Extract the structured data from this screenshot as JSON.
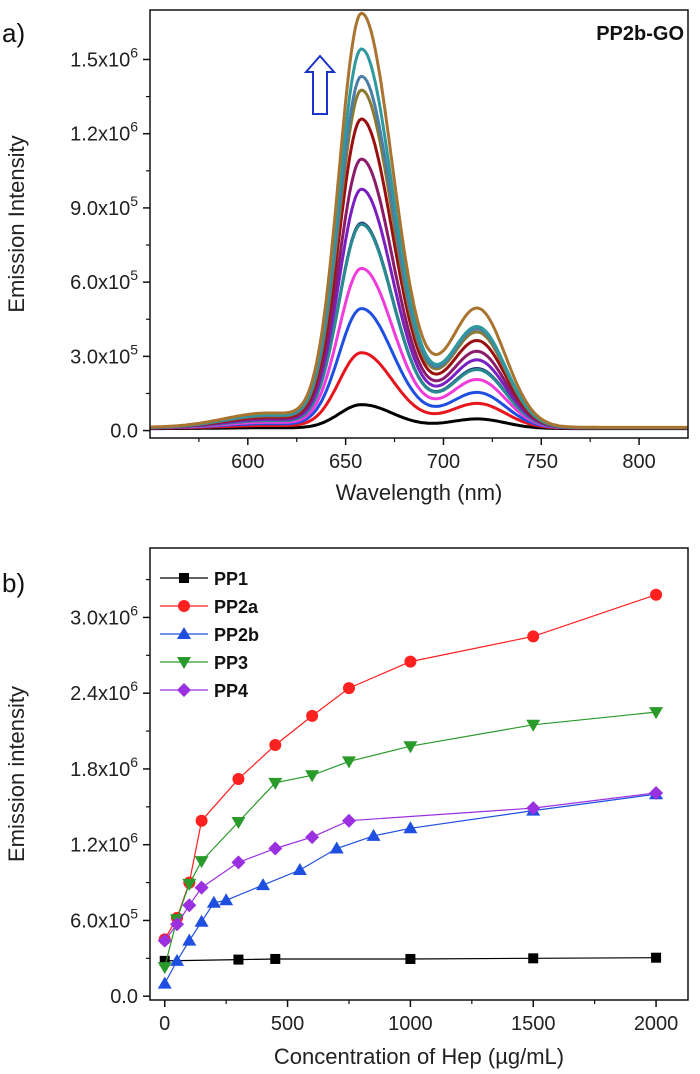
{
  "panel_a": {
    "panel_label": "a)",
    "corner_label": "PP2b-GO",
    "arrow_color": "#1c33c8",
    "chart_data": {
      "type": "line",
      "xlabel": "Wavelength (nm)",
      "ylabel": "Emission Intensity",
      "xlim": [
        550,
        825
      ],
      "ylim": [
        -30000,
        1700000
      ],
      "x_ticks": [
        600,
        650,
        700,
        750,
        800
      ],
      "y_ticks": [
        {
          "value": 0,
          "label": "0.0"
        },
        {
          "value": 300000,
          "mant": "3.0x10",
          "exp": "5"
        },
        {
          "value": 600000,
          "mant": "6.0x10",
          "exp": "5"
        },
        {
          "value": 900000,
          "mant": "9.0x10",
          "exp": "5"
        },
        {
          "value": 1200000,
          "mant": "1.2x10",
          "exp": "6"
        },
        {
          "value": 1500000,
          "mant": "1.5x10",
          "exp": "6"
        }
      ],
      "grid": false,
      "series": [
        {
          "color": "#000000",
          "peak1": 95000,
          "peak2": 45000,
          "base": 8000
        },
        {
          "color": "#e8141e",
          "peak1": 300000,
          "peak2": 115000,
          "base": 10000
        },
        {
          "color": "#1f4fe0",
          "peak1": 475000,
          "peak2": 165000,
          "base": 11000
        },
        {
          "color": "#f03cdc",
          "peak1": 635000,
          "peak2": 225000,
          "base": 11000
        },
        {
          "color": "#1e3a78",
          "peak1": 815000,
          "peak2": 275000,
          "base": 12000
        },
        {
          "color": "#2a8a92",
          "peak1": 810000,
          "peak2": 270000,
          "base": 12000
        },
        {
          "color": "#7a1fc0",
          "peak1": 950000,
          "peak2": 315000,
          "base": 12000
        },
        {
          "color": "#8a1c6a",
          "peak1": 1070000,
          "peak2": 355000,
          "base": 12000
        },
        {
          "color": "#9a1010",
          "peak1": 1230000,
          "peak2": 405000,
          "base": 12000
        },
        {
          "color": "#8a7a30",
          "peak1": 1345000,
          "peak2": 445000,
          "base": 12000
        },
        {
          "color": "#4a7ea8",
          "peak1": 1400000,
          "peak2": 460000,
          "base": 12000
        },
        {
          "color": "#2f9a9e",
          "peak1": 1510000,
          "peak2": 470000,
          "base": 12000
        },
        {
          "color": "#a87430",
          "peak1": 1650000,
          "peak2": 555000,
          "base": 13000
        }
      ]
    }
  },
  "panel_b": {
    "panel_label": "b)",
    "chart_data": {
      "type": "line",
      "xlabel": "Concentration of Hep (µg/mL)",
      "ylabel": "Emission intensity",
      "xlim": [
        -60,
        2130
      ],
      "ylim": [
        -30000,
        3550000
      ],
      "x_ticks": [
        0,
        500,
        1000,
        1500,
        2000
      ],
      "y_ticks": [
        {
          "value": 0,
          "label": "0.0"
        },
        {
          "value": 600000,
          "mant": "6.0x10",
          "exp": "5"
        },
        {
          "value": 1200000,
          "mant": "1.2x10",
          "exp": "6"
        },
        {
          "value": 1800000,
          "mant": "1.8x10",
          "exp": "6"
        },
        {
          "value": 2400000,
          "mant": "2.4x10",
          "exp": "6"
        },
        {
          "value": 3000000,
          "mant": "3.0x10",
          "exp": "6"
        }
      ],
      "grid": false,
      "legend_position": "top-left",
      "series": [
        {
          "name": "PP1",
          "color": "#000000",
          "marker": "square",
          "x": [
            0,
            300,
            450,
            1000,
            1500,
            2000
          ],
          "y": [
            280000,
            290000,
            295000,
            295000,
            300000,
            305000
          ]
        },
        {
          "name": "PP2a",
          "color": "#ff2020",
          "marker": "circle",
          "x": [
            0,
            50,
            100,
            150,
            300,
            450,
            600,
            750,
            1000,
            1500,
            2000
          ],
          "y": [
            450000,
            620000,
            900000,
            1390000,
            1720000,
            1990000,
            2220000,
            2440000,
            2650000,
            2850000,
            3180000
          ]
        },
        {
          "name": "PP2b",
          "color": "#1f4fe0",
          "marker": "triangle-up",
          "x": [
            0,
            50,
            100,
            150,
            200,
            250,
            400,
            550,
            700,
            850,
            1000,
            1500,
            2000
          ],
          "y": [
            100000,
            280000,
            440000,
            590000,
            740000,
            760000,
            880000,
            1000000,
            1170000,
            1270000,
            1330000,
            1470000,
            1600000
          ]
        },
        {
          "name": "PP3",
          "color": "#2a9a2a",
          "marker": "triangle-down",
          "x": [
            0,
            50,
            100,
            150,
            300,
            450,
            600,
            750,
            1000,
            1500,
            2000
          ],
          "y": [
            230000,
            610000,
            890000,
            1070000,
            1380000,
            1690000,
            1750000,
            1860000,
            1980000,
            2150000,
            2250000
          ]
        },
        {
          "name": "PP4",
          "color": "#9b30e0",
          "marker": "diamond",
          "x": [
            0,
            50,
            100,
            150,
            300,
            450,
            600,
            750,
            1500,
            2000
          ],
          "y": [
            440000,
            570000,
            720000,
            860000,
            1060000,
            1170000,
            1260000,
            1390000,
            1490000,
            1610000
          ]
        }
      ]
    }
  }
}
